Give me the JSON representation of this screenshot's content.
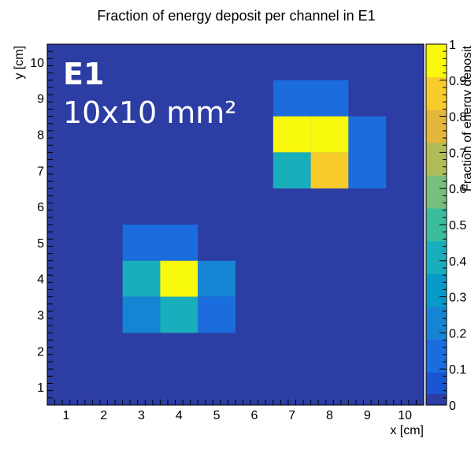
{
  "chart_data": {
    "type": "heatmap",
    "title": "Fraction of energy deposit per channel in E1",
    "xlabel": "x [cm]",
    "ylabel": "y [cm]",
    "zlabel": "Fraction of energy deposit",
    "overlay_title": "E1",
    "overlay_subtitle": "10x10 mm²",
    "xlim": [
      0.5,
      10.5
    ],
    "ylim": [
      0.5,
      10.5
    ],
    "zlim": [
      0,
      1
    ],
    "x_ticks": [
      "1",
      "2",
      "3",
      "4",
      "5",
      "6",
      "7",
      "8",
      "9",
      "10"
    ],
    "y_ticks": [
      "1",
      "2",
      "3",
      "4",
      "5",
      "6",
      "7",
      "8",
      "9",
      "10"
    ],
    "z_ticks": [
      "0",
      "0.1",
      "0.2",
      "0.3",
      "0.4",
      "0.5",
      "0.6",
      "0.7",
      "0.8",
      "0.9",
      "1"
    ],
    "background_value": 0,
    "cells": [
      {
        "x": 7,
        "y": 9,
        "value": 0.15
      },
      {
        "x": 8,
        "y": 9,
        "value": 0.15
      },
      {
        "x": 7,
        "y": 8,
        "value": 0.95
      },
      {
        "x": 8,
        "y": 8,
        "value": 1.0
      },
      {
        "x": 9,
        "y": 8,
        "value": 0.15
      },
      {
        "x": 7,
        "y": 7,
        "value": 0.4
      },
      {
        "x": 8,
        "y": 7,
        "value": 0.9
      },
      {
        "x": 9,
        "y": 7,
        "value": 0.15
      },
      {
        "x": 3,
        "y": 5,
        "value": 0.15
      },
      {
        "x": 4,
        "y": 5,
        "value": 0.18
      },
      {
        "x": 3,
        "y": 4,
        "value": 0.45
      },
      {
        "x": 4,
        "y": 4,
        "value": 1.0
      },
      {
        "x": 5,
        "y": 4,
        "value": 0.2
      },
      {
        "x": 3,
        "y": 3,
        "value": 0.2
      },
      {
        "x": 4,
        "y": 3,
        "value": 0.45
      },
      {
        "x": 5,
        "y": 3,
        "value": 0.15
      }
    ],
    "palette": [
      "#2c3da4",
      "#1a55d3",
      "#1b6ddd",
      "#1584d2",
      "#079ac8",
      "#19aebb",
      "#3bbc9d",
      "#78bf7d",
      "#b0bc59",
      "#e3b63c",
      "#f8cd2b",
      "#f9f90e"
    ]
  }
}
